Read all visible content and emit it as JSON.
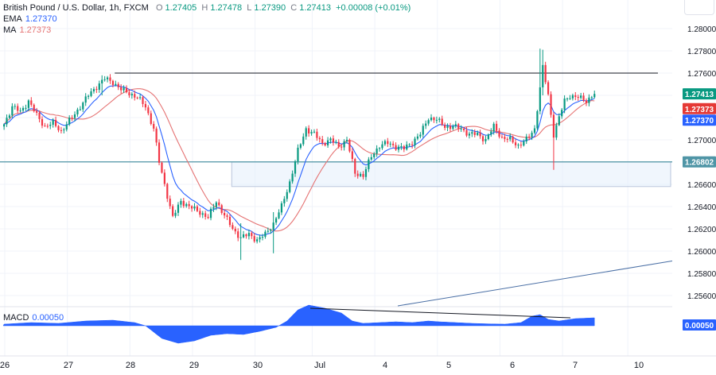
{
  "legend": {
    "symbol": "British Pound / U.S. Dollar, 1h, FXCM",
    "open_label": "O",
    "open": "1.27405",
    "high_label": "H",
    "high": "1.27478",
    "low_label": "L",
    "low": "1.27390",
    "close_label": "C",
    "close": "1.27413",
    "change": "+0.00008 (+0.01%)",
    "ema_label": "EMA",
    "ema": "1.27370",
    "ma_label": "MA",
    "ma": "1.27373"
  },
  "macd": {
    "label": "MACD",
    "value": "0.00050",
    "badge": "0.00050"
  },
  "colors": {
    "up": "#089981",
    "down": "#f23645",
    "ema": "#2962ff",
    "ma": "#e57373",
    "macd": "#2962ff",
    "support": "#4f95a6",
    "resistance": "#131722",
    "trend": "#4a6fa5"
  },
  "chart_data": {
    "type": "candlestick",
    "instrument": "British Pound / U.S. Dollar",
    "timeframe": "1h",
    "source": "FXCM",
    "ylim": [
      1.255,
      1.281
    ],
    "y_ticks": [
      "1.28000",
      "1.27800",
      "1.27600",
      "1.27400",
      "1.27200",
      "1.27000",
      "1.26800",
      "1.26600",
      "1.26400",
      "1.26200",
      "1.26000",
      "1.25800",
      "1.25600"
    ],
    "x_ticks": [
      "26",
      "27",
      "28",
      "29",
      "30",
      "Jul",
      "4",
      "5",
      "6",
      "7",
      "10"
    ],
    "price_badges": [
      {
        "text": "1.27413",
        "value": 1.27413,
        "color": "#089981"
      },
      {
        "text": "1.27373",
        "value": 1.27373,
        "color": "#e53935"
      },
      {
        "text": "1.27370",
        "value": 1.2737,
        "color": "#2962ff"
      },
      {
        "text": "1.26802",
        "value": 1.26802,
        "color": "#4f95a6"
      }
    ],
    "levels": {
      "resistance": 1.276,
      "support": 1.26802,
      "zone": [
        1.2658,
        1.268
      ]
    },
    "close_path": [
      [
        0,
        1.2714
      ],
      [
        3,
        1.273
      ],
      [
        6,
        1.2725
      ],
      [
        9,
        1.2735
      ],
      [
        12,
        1.2722
      ],
      [
        15,
        1.2712
      ],
      [
        18,
        1.2715
      ],
      [
        21,
        1.2708
      ],
      [
        25,
        1.272
      ],
      [
        28,
        1.273
      ],
      [
        31,
        1.274
      ],
      [
        34,
        1.2748
      ],
      [
        37,
        1.2755
      ],
      [
        40,
        1.2752
      ],
      [
        43,
        1.2745
      ],
      [
        46,
        1.2742
      ],
      [
        49,
        1.2738
      ],
      [
        52,
        1.273
      ],
      [
        55,
        1.271
      ],
      [
        57,
        1.268
      ],
      [
        60,
        1.265
      ],
      [
        62,
        1.263
      ],
      [
        65,
        1.2645
      ],
      [
        68,
        1.264
      ],
      [
        72,
        1.2635
      ],
      [
        75,
        1.263
      ],
      [
        78,
        1.2645
      ],
      [
        81,
        1.2632
      ],
      [
        84,
        1.262
      ],
      [
        87,
        1.2612
      ],
      [
        90,
        1.2615
      ],
      [
        93,
        1.261
      ],
      [
        96,
        1.2615
      ],
      [
        99,
        1.2625
      ],
      [
        102,
        1.264
      ],
      [
        105,
        1.2662
      ],
      [
        108,
        1.269
      ],
      [
        111,
        1.271
      ],
      [
        114,
        1.2705
      ],
      [
        117,
        1.2697
      ],
      [
        120,
        1.27
      ],
      [
        123,
        1.2694
      ],
      [
        126,
        1.27
      ],
      [
        129,
        1.267
      ],
      [
        132,
        1.2668
      ],
      [
        135,
        1.2685
      ],
      [
        138,
        1.2695
      ],
      [
        141,
        1.2697
      ],
      [
        144,
        1.2694
      ],
      [
        147,
        1.2692
      ],
      [
        150,
        1.2698
      ],
      [
        153,
        1.2705
      ],
      [
        156,
        1.272
      ],
      [
        159,
        1.2718
      ],
      [
        162,
        1.2712
      ],
      [
        165,
        1.2712
      ],
      [
        168,
        1.271
      ],
      [
        171,
        1.2705
      ],
      [
        174,
        1.2705
      ],
      [
        177,
        1.27
      ],
      [
        180,
        1.2712
      ],
      [
        183,
        1.2702
      ],
      [
        186,
        1.27
      ],
      [
        189,
        1.2695
      ],
      [
        192,
        1.27
      ],
      [
        195,
        1.271
      ],
      [
        198,
        1.2765
      ],
      [
        200,
        1.274
      ],
      [
        202,
        1.2705
      ],
      [
        204,
        1.272
      ],
      [
        206,
        1.2735
      ],
      [
        208,
        1.274
      ],
      [
        211,
        1.2738
      ],
      [
        214,
        1.2735
      ],
      [
        217,
        1.2742
      ]
    ],
    "events": [
      {
        "i": 36,
        "high": 1.2758,
        "low": 1.274
      },
      {
        "i": 87,
        "high": 1.2625,
        "low": 1.2592
      },
      {
        "i": 99,
        "high": 1.2635,
        "low": 1.2598
      },
      {
        "i": 197,
        "high": 1.2782,
        "low": 1.2728
      },
      {
        "i": 198,
        "high": 1.2781,
        "low": 1.274
      },
      {
        "i": 202,
        "high": 1.2725,
        "low": 1.2673
      }
    ],
    "macd_path": [
      [
        0,
        0.0001
      ],
      [
        10,
        0.0002
      ],
      [
        20,
        0.00015
      ],
      [
        30,
        0.0003
      ],
      [
        40,
        0.00035
      ],
      [
        48,
        0.0002
      ],
      [
        52,
        0.0
      ],
      [
        58,
        -0.0008
      ],
      [
        64,
        -0.0011
      ],
      [
        70,
        -0.00095
      ],
      [
        76,
        -0.0006
      ],
      [
        82,
        -0.0005
      ],
      [
        88,
        -0.00055
      ],
      [
        94,
        -0.00035
      ],
      [
        100,
        -0.0001
      ],
      [
        104,
        0.0003
      ],
      [
        108,
        0.001
      ],
      [
        112,
        0.0013
      ],
      [
        118,
        0.0011
      ],
      [
        124,
        0.0008
      ],
      [
        128,
        0.0003
      ],
      [
        132,
        0.00015
      ],
      [
        138,
        0.0002
      ],
      [
        144,
        0.00025
      ],
      [
        150,
        0.0002
      ],
      [
        156,
        0.0003
      ],
      [
        160,
        0.00025
      ],
      [
        166,
        0.0002
      ],
      [
        172,
        0.00015
      ],
      [
        178,
        0.00012
      ],
      [
        184,
        0.0001
      ],
      [
        190,
        0.0002
      ],
      [
        194,
        0.0006
      ],
      [
        197,
        0.0007
      ],
      [
        200,
        0.0004
      ],
      [
        204,
        0.0003
      ],
      [
        210,
        0.00045
      ],
      [
        217,
        0.0005
      ]
    ]
  }
}
